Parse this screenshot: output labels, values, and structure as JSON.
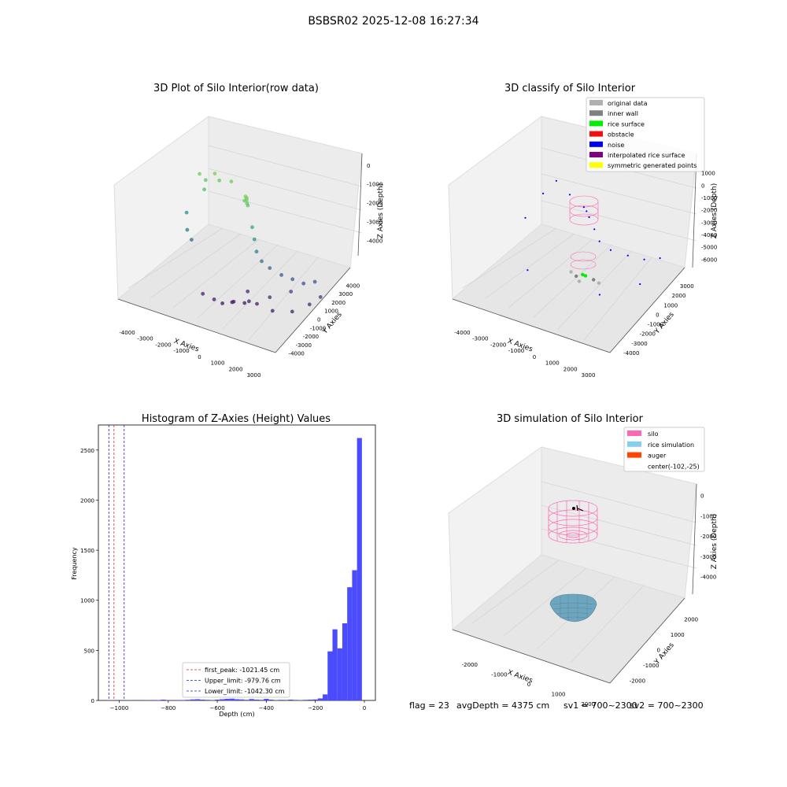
{
  "suptitle": "BSBSR02 2025-12-08 16:27:34",
  "footer": {
    "flag": "flag = 23",
    "avg_depth": "avgDepth = 4375 cm",
    "sv1": "sv1 = 700~2300",
    "sv2": "sv2 = 700~2300"
  },
  "chart_data": [
    {
      "type": "scatter",
      "dimensions": "3d",
      "title": "3D Plot of Silo Interior(row data)",
      "xlabel": "X Axies",
      "ylabel": "Y Axies",
      "zlabel": "Z Axies (Depth)",
      "x_ticks": [
        "-4000",
        "-3000",
        "-2000",
        "-1000",
        "0",
        "1000",
        "2000",
        "3000"
      ],
      "y_ticks": [
        "-4000",
        "-3000",
        "-2000",
        "-1000",
        "0",
        "1000",
        "2000",
        "3000",
        "4000"
      ],
      "z_ticks": [
        "-4000",
        "-3000",
        "-2000",
        "-1000",
        "0"
      ],
      "xlim": [
        -4500,
        3500
      ],
      "ylim": [
        -4500,
        4500
      ],
      "zlim": [
        -4700,
        200
      ],
      "colormap": "viridis (by depth)",
      "grid": true,
      "points": [
        {
          "x": -200,
          "y": -100,
          "z": -800
        },
        {
          "x": -150,
          "y": -50,
          "z": -900
        },
        {
          "x": -100,
          "y": -120,
          "z": -1000
        },
        {
          "x": -250,
          "y": -80,
          "z": -950
        },
        {
          "x": -180,
          "y": 0,
          "z": -850
        },
        {
          "x": -120,
          "y": 50,
          "z": -1100
        },
        {
          "x": -3200,
          "y": 1500,
          "z": -900
        },
        {
          "x": -3000,
          "y": 1800,
          "z": -1100
        },
        {
          "x": -2800,
          "y": 1200,
          "z": -1300
        },
        {
          "x": -3500,
          "y": 900,
          "z": -2200
        },
        {
          "x": -3300,
          "y": 600,
          "z": -2700
        },
        {
          "x": -3100,
          "y": 700,
          "z": -3000
        },
        {
          "x": -2600,
          "y": 1900,
          "z": -800
        },
        {
          "x": -2400,
          "y": 2000,
          "z": -1000
        },
        {
          "x": -1800,
          "y": 2000,
          "z": -900
        },
        {
          "x": 100,
          "y": 200,
          "z": -1800
        },
        {
          "x": 200,
          "y": 300,
          "z": -2200
        },
        {
          "x": 300,
          "y": 400,
          "z": -2600
        },
        {
          "x": 500,
          "y": 600,
          "z": -2900
        },
        {
          "x": 800,
          "y": 900,
          "z": -3100
        },
        {
          "x": 1200,
          "y": 1400,
          "z": -3300
        },
        {
          "x": 1600,
          "y": 1800,
          "z": -3400
        },
        {
          "x": 2000,
          "y": 2200,
          "z": -3500
        },
        {
          "x": 2400,
          "y": 2600,
          "z": -3400
        },
        {
          "x": 1800,
          "y": 1200,
          "z": -3700
        },
        {
          "x": 1000,
          "y": 600,
          "z": -4000
        },
        {
          "x": 300,
          "y": -200,
          "z": -4200
        },
        {
          "x": -300,
          "y": -600,
          "z": -4300
        },
        {
          "x": -700,
          "y": -1000,
          "z": -4400
        },
        {
          "x": -1000,
          "y": -1300,
          "z": -4300
        },
        {
          "x": -500,
          "y": -300,
          "z": -4400
        },
        {
          "x": 0,
          "y": 0,
          "z": -4350
        },
        {
          "x": 500,
          "y": 300,
          "z": -4300
        },
        {
          "x": 1500,
          "y": -200,
          "z": -4250
        },
        {
          "x": 2200,
          "y": 500,
          "z": -4200
        },
        {
          "x": -1500,
          "y": -1500,
          "z": -4200
        },
        {
          "x": -200,
          "y": 800,
          "z": -4100
        },
        {
          "x": 2600,
          "y": 1600,
          "z": -4000
        },
        {
          "x": 2800,
          "y": 2400,
          "z": -3800
        }
      ]
    },
    {
      "type": "scatter",
      "dimensions": "3d",
      "title": "3D classify of Silo Interior",
      "xlabel": "X Axies",
      "ylabel": "Y Axies",
      "zlabel": "Z Axies (Depth)",
      "x_ticks": [
        "-4000",
        "-3000",
        "-2000",
        "-1000",
        "0",
        "1000",
        "2000",
        "3000"
      ],
      "y_ticks": [
        "-4000",
        "-3000",
        "-2000",
        "-1000",
        "0",
        "1000",
        "2000",
        "3000"
      ],
      "z_ticks": [
        "-6000",
        "-5000",
        "-4000",
        "-3000",
        "-2000",
        "-1000",
        "0",
        "1000"
      ],
      "xlim": [
        -4500,
        3500
      ],
      "ylim": [
        -4500,
        3500
      ],
      "zlim": [
        -6300,
        1300
      ],
      "legend_position": "top-right",
      "grid": true,
      "legend": [
        {
          "label": "original data",
          "color": "#b0b0b0"
        },
        {
          "label": "inner wall",
          "color": "#808080"
        },
        {
          "label": "rice surface",
          "color": "#00ee00"
        },
        {
          "label": "obstacle",
          "color": "#ee1111"
        },
        {
          "label": "noise",
          "color": "#0000ee"
        },
        {
          "label": "interpolated rice surface",
          "color": "#800080"
        },
        {
          "label": "symmetric generated points",
          "color": "#ffff00"
        }
      ],
      "points": [
        {
          "x": -200,
          "y": -100,
          "z": -900,
          "class": "noise"
        },
        {
          "x": -100,
          "y": 0,
          "z": -1100,
          "class": "noise"
        },
        {
          "x": 0,
          "y": 100,
          "z": -1400,
          "class": "noise"
        },
        {
          "x": 200,
          "y": 300,
          "z": -2000,
          "class": "noise"
        },
        {
          "x": 400,
          "y": 500,
          "z": -2600,
          "class": "noise"
        },
        {
          "x": 800,
          "y": 900,
          "z": -3000,
          "class": "noise"
        },
        {
          "x": 1400,
          "y": 1500,
          "z": -3200,
          "class": "noise"
        },
        {
          "x": 2000,
          "y": 2000,
          "z": -3300,
          "class": "noise"
        },
        {
          "x": 2600,
          "y": 2400,
          "z": -3100,
          "class": "noise"
        },
        {
          "x": -3000,
          "y": 1500,
          "z": -1500,
          "class": "noise"
        },
        {
          "x": -3500,
          "y": 800,
          "z": -2800,
          "class": "noise"
        },
        {
          "x": -2600,
          "y": 2000,
          "z": -800,
          "class": "noise"
        },
        {
          "x": -1800,
          "y": 1800,
          "z": -1200,
          "class": "noise"
        },
        {
          "x": -2200,
          "y": -1500,
          "z": -4600,
          "class": "noise"
        },
        {
          "x": 1600,
          "y": -1800,
          "z": -4500,
          "class": "noise"
        },
        {
          "x": 2400,
          "y": 800,
          "z": -4200,
          "class": "noise"
        },
        {
          "x": -300,
          "y": -300,
          "z": -4500,
          "class": "inner wall"
        },
        {
          "x": 300,
          "y": 300,
          "z": -4600,
          "class": "inner wall"
        },
        {
          "x": -800,
          "y": 200,
          "z": -4550,
          "class": "original data"
        },
        {
          "x": 800,
          "y": -200,
          "z": -4500,
          "class": "original data"
        },
        {
          "x": 0,
          "y": -600,
          "z": -4600,
          "class": "original data"
        },
        {
          "x": -100,
          "y": -50,
          "z": -4400,
          "class": "rice surface"
        },
        {
          "x": 0,
          "y": 50,
          "z": -4450,
          "class": "rice surface"
        }
      ]
    },
    {
      "type": "histogram",
      "title": "Histogram of Z-Axies (Height) Values",
      "xlabel": "Depth (cm)",
      "ylabel": "Frequency",
      "xlim": [
        -1085,
        45
      ],
      "ylim": [
        0,
        2750
      ],
      "x_ticks": [
        -1000,
        -800,
        -600,
        -400,
        -200,
        0
      ],
      "y_ticks": [
        0,
        500,
        1000,
        1500,
        2000,
        2500
      ],
      "bin_width": 20,
      "bins": [
        {
          "x0": -1050,
          "count": 2
        },
        {
          "x0": -1030,
          "count": 1
        },
        {
          "x0": -1010,
          "count": 1
        },
        {
          "x0": -990,
          "count": 1
        },
        {
          "x0": -970,
          "count": 2
        },
        {
          "x0": -950,
          "count": 1
        },
        {
          "x0": -930,
          "count": 1
        },
        {
          "x0": -910,
          "count": 2
        },
        {
          "x0": -890,
          "count": 3
        },
        {
          "x0": -870,
          "count": 2
        },
        {
          "x0": -850,
          "count": 4
        },
        {
          "x0": -830,
          "count": 8
        },
        {
          "x0": -810,
          "count": 3
        },
        {
          "x0": -790,
          "count": 2
        },
        {
          "x0": -770,
          "count": 3
        },
        {
          "x0": -750,
          "count": 4
        },
        {
          "x0": -730,
          "count": 6
        },
        {
          "x0": -710,
          "count": 10
        },
        {
          "x0": -690,
          "count": 12
        },
        {
          "x0": -670,
          "count": 8
        },
        {
          "x0": -650,
          "count": 6
        },
        {
          "x0": -630,
          "count": 4
        },
        {
          "x0": -610,
          "count": 8
        },
        {
          "x0": -590,
          "count": 12
        },
        {
          "x0": -570,
          "count": 16
        },
        {
          "x0": -550,
          "count": 18
        },
        {
          "x0": -530,
          "count": 12
        },
        {
          "x0": -510,
          "count": 10
        },
        {
          "x0": -490,
          "count": 6
        },
        {
          "x0": -470,
          "count": 14
        },
        {
          "x0": -450,
          "count": 8
        },
        {
          "x0": -430,
          "count": 6
        },
        {
          "x0": -410,
          "count": 16
        },
        {
          "x0": -390,
          "count": 8
        },
        {
          "x0": -370,
          "count": 4
        },
        {
          "x0": -350,
          "count": 6
        },
        {
          "x0": -330,
          "count": 5
        },
        {
          "x0": -310,
          "count": 8
        },
        {
          "x0": -290,
          "count": 5
        },
        {
          "x0": -270,
          "count": 4
        },
        {
          "x0": -250,
          "count": 6
        },
        {
          "x0": -230,
          "count": 8
        },
        {
          "x0": -210,
          "count": 10
        },
        {
          "x0": -190,
          "count": 20
        },
        {
          "x0": -170,
          "count": 60
        },
        {
          "x0": -150,
          "count": 490
        },
        {
          "x0": -130,
          "count": 710
        },
        {
          "x0": -110,
          "count": 520
        },
        {
          "x0": -90,
          "count": 770
        },
        {
          "x0": -70,
          "count": 1130
        },
        {
          "x0": -50,
          "count": 1300
        },
        {
          "x0": -30,
          "count": 2620
        }
      ],
      "bar_color": "#4c4cff",
      "vlines": [
        {
          "label": "first_peak: -1021.45 cm",
          "x": -1021.45,
          "color": "#cc3333"
        },
        {
          "label": "Upper_limit: -979.76 cm",
          "x": -979.76,
          "color": "#2222cc"
        },
        {
          "label": "Lower_limit: -1042.30 cm",
          "x": -1042.3,
          "color": "#2222cc"
        }
      ],
      "legend_position": "lower-center"
    },
    {
      "type": "surface",
      "dimensions": "3d",
      "title": "3D simulation of Silo Interior",
      "xlabel": "X Axies",
      "ylabel": "Y Axies",
      "zlabel": "Z Axies (Depth)",
      "x_ticks": [
        "-2000",
        "-1000",
        "0",
        "1000",
        "2000"
      ],
      "y_ticks": [
        "-2000",
        "-1000",
        "0",
        "1000",
        "2000"
      ],
      "z_ticks": [
        "-4000",
        "-3000",
        "-2000",
        "-1000",
        "0"
      ],
      "xlim": [
        -2500,
        2500
      ],
      "ylim": [
        -2500,
        2500
      ],
      "zlim": [
        -4800,
        300
      ],
      "legend_position": "top-right",
      "grid": true,
      "legend": [
        {
          "label": "silo",
          "color": "#ff69b4"
        },
        {
          "label": "rice simulation",
          "color": "#87ceeb"
        },
        {
          "label": "auger",
          "color": "#ff4500"
        },
        {
          "label": "center(-102,-25)",
          "color": ""
        }
      ],
      "center": [
        -102,
        -25
      ]
    }
  ]
}
